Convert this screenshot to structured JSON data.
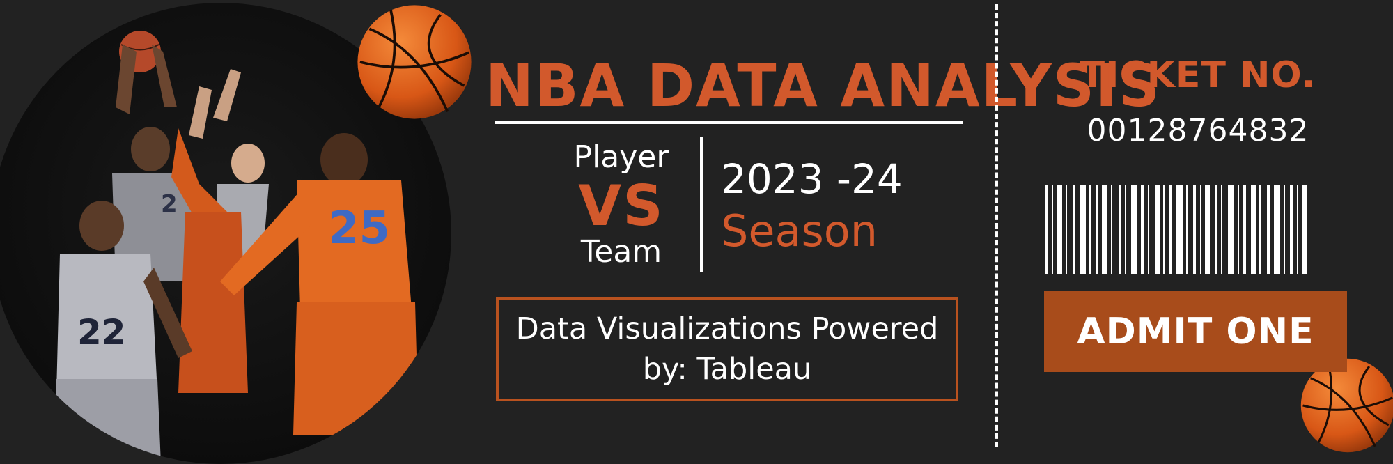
{
  "header": {
    "title": "NBA DATA ANALYSIS"
  },
  "matchup": {
    "player": "Player",
    "versus": "VS",
    "team": "Team"
  },
  "season": {
    "year": "2023 -24",
    "label": "Season"
  },
  "powered_by": "Data Visualizations Powered by: Tableau",
  "ticket": {
    "label": "TICKET NO.",
    "number": "00128764832",
    "admit_label": "ADMIT ONE"
  },
  "photo": {
    "jersey_numbers": [
      "2",
      "25",
      "22"
    ]
  },
  "colors": {
    "background": "#222222",
    "accent": "#d2592c",
    "button": "#a84c1b",
    "text": "#ffffff"
  }
}
